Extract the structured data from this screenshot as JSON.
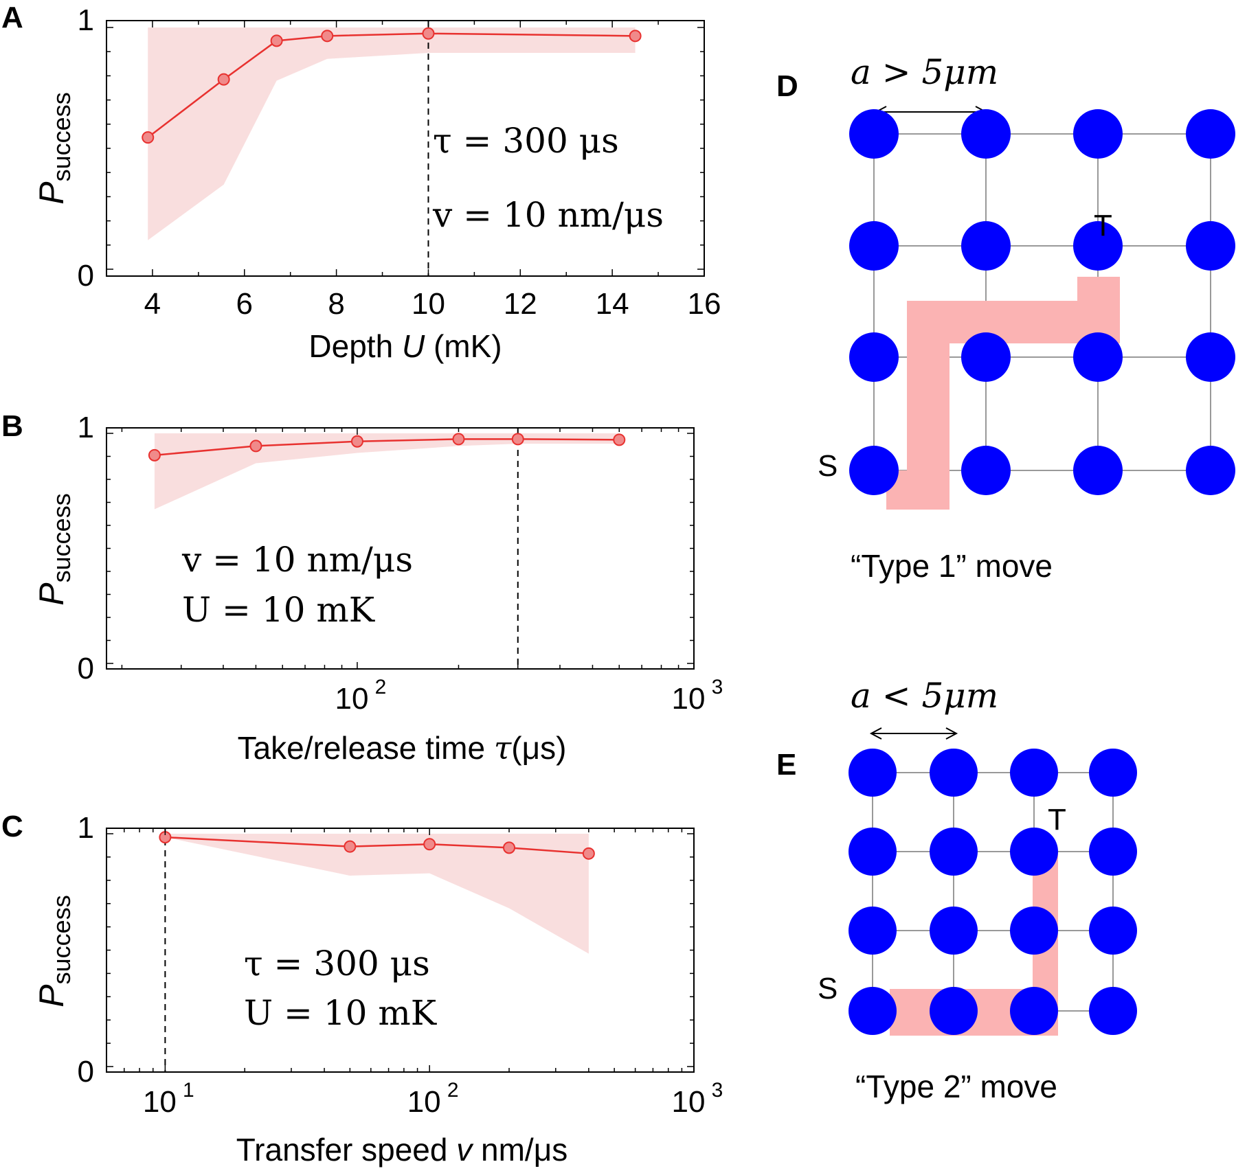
{
  "chart_data": [
    {
      "panel": "A",
      "type": "line",
      "xscale": "linear",
      "x": [
        3.9,
        5.55,
        6.7,
        7.8,
        10.0,
        14.5
      ],
      "series": [
        {
          "name": "P_success",
          "values": [
            0.545,
            0.785,
            0.945,
            0.965,
            0.975,
            0.965
          ]
        },
        {
          "name": "lower bound",
          "values": [
            0.12,
            0.35,
            0.78,
            0.87,
            0.895,
            0.895
          ]
        },
        {
          "name": "upper bound",
          "values": [
            1.0,
            1.0,
            1.0,
            1.0,
            1.0,
            1.0
          ]
        }
      ],
      "ylim": [
        0,
        1
      ],
      "xlim": [
        3,
        16
      ],
      "xticks": [
        "4",
        "6",
        "8",
        "10",
        "12",
        "14",
        "16"
      ],
      "yticks": [
        "0",
        "1"
      ],
      "xlabel_main": "Depth ",
      "xlabel_var": "U",
      "xlabel_unit": " (mK)",
      "ylabel_main": "P",
      "ylabel_sub": "success",
      "dashed_x": 10,
      "annotations": [
        "τ = 300 μs",
        "v = 10 nm/μs"
      ],
      "colors": {
        "line": "#e8312f",
        "band": "#f9dede",
        "marker": "#f08a8a"
      }
    },
    {
      "panel": "B",
      "type": "line",
      "xscale": "log",
      "x": [
        25,
        50,
        100,
        200,
        300,
        600
      ],
      "series": [
        {
          "name": "P_success",
          "values": [
            0.905,
            0.945,
            0.965,
            0.975,
            0.975,
            0.972
          ]
        },
        {
          "name": "lower bound",
          "values": [
            0.67,
            0.87,
            0.915,
            0.945,
            0.955,
            0.955
          ]
        },
        {
          "name": "upper bound",
          "values": [
            1.0,
            1.0,
            1.0,
            1.0,
            1.0,
            1.0
          ]
        }
      ],
      "ylim": [
        0,
        1
      ],
      "xlim": [
        18,
        1000
      ],
      "xticks_base": [
        "10",
        "10"
      ],
      "xticks_exp": [
        "2",
        "3"
      ],
      "yticks": [
        "0",
        "1"
      ],
      "xlabel_main": "Take/release time ",
      "xlabel_var": "τ",
      "xlabel_unit": "(μs)",
      "ylabel_main": "P",
      "ylabel_sub": "success",
      "dashed_x": 300,
      "annotations": [
        "v = 10 nm/μs",
        "U = 10 mK"
      ],
      "colors": {
        "line": "#e8312f",
        "band": "#f9dede",
        "marker": "#f08a8a"
      }
    },
    {
      "panel": "C",
      "type": "line",
      "xscale": "log",
      "x": [
        10,
        50,
        100,
        200,
        400
      ],
      "series": [
        {
          "name": "P_success",
          "values": [
            0.985,
            0.945,
            0.955,
            0.94,
            0.915
          ]
        },
        {
          "name": "lower bound",
          "values": [
            0.985,
            0.82,
            0.83,
            0.68,
            0.485
          ]
        },
        {
          "name": "upper bound",
          "values": [
            1.0,
            1.0,
            1.0,
            1.0,
            1.0
          ]
        }
      ],
      "ylim": [
        0,
        1
      ],
      "xlim": [
        6,
        1000
      ],
      "xticks_base": [
        "10",
        "10",
        "10"
      ],
      "xticks_exp": [
        "1",
        "2",
        "3"
      ],
      "yticks": [
        "0",
        "1"
      ],
      "xlabel_main": "Transfer speed ",
      "xlabel_var": "v",
      "xlabel_unit": " nm/μs",
      "ylabel_main": "P",
      "ylabel_sub": "success",
      "dashed_x": 10,
      "annotations": [
        "τ = 300 μs",
        "U = 10 mK"
      ],
      "colors": {
        "line": "#e8312f",
        "band": "#f9dede",
        "marker": "#f08a8a"
      }
    }
  ],
  "diagrams": [
    {
      "panel": "D",
      "spacing_label": "a > 5μm",
      "source_label": "S",
      "target_label": "T",
      "caption": "“Type 1” move",
      "grid_rows": 4,
      "grid_cols": 4
    },
    {
      "panel": "E",
      "spacing_label": "a < 5μm",
      "source_label": "S",
      "target_label": "T",
      "caption": "“Type 2” move",
      "grid_rows": 4,
      "grid_cols": 4
    }
  ],
  "colors": {
    "atom": "#0000ff",
    "path": "#fbb3b3",
    "grid": "#999999"
  }
}
